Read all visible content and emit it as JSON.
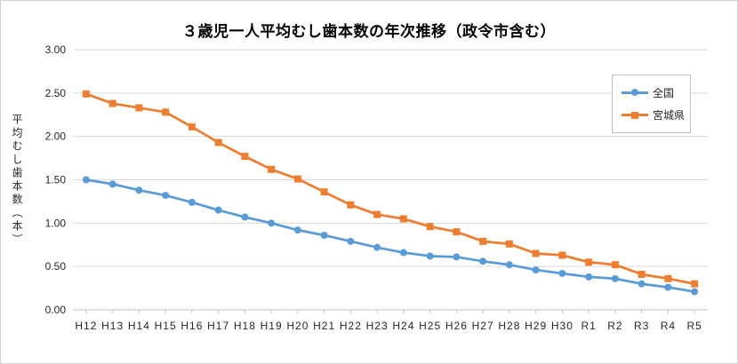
{
  "chart_data": {
    "type": "line",
    "title": "３歳児一人平均むし歯本数の年次推移（政令市含む）",
    "ylabel": "平均むし歯本数（本）",
    "xlabel": "",
    "categories": [
      "H12",
      "H13",
      "H14",
      "H15",
      "H16",
      "H17",
      "H18",
      "H19",
      "H20",
      "H21",
      "H22",
      "H23",
      "H24",
      "H25",
      "H26",
      "H27",
      "H28",
      "H29",
      "H30",
      "R1",
      "R2",
      "R3",
      "R4",
      "R5"
    ],
    "series": [
      {
        "name": "全国",
        "marker": "circle",
        "color": "#5B9BD5",
        "values": [
          1.5,
          1.45,
          1.38,
          1.32,
          1.24,
          1.15,
          1.07,
          1.0,
          0.92,
          0.86,
          0.79,
          0.72,
          0.66,
          0.62,
          0.61,
          0.56,
          0.52,
          0.46,
          0.42,
          0.38,
          0.36,
          0.3,
          0.26,
          0.21
        ]
      },
      {
        "name": "宮城県",
        "marker": "square",
        "color": "#ED7D31",
        "values": [
          2.49,
          2.38,
          2.33,
          2.28,
          2.11,
          1.93,
          1.77,
          1.62,
          1.51,
          1.36,
          1.21,
          1.1,
          1.05,
          0.96,
          0.9,
          0.79,
          0.76,
          0.65,
          0.63,
          0.55,
          0.52,
          0.41,
          0.36,
          0.3
        ]
      }
    ],
    "ylim": [
      0,
      3.0
    ],
    "ytick_step": 0.5,
    "ytick_labels": [
      "0.00",
      "0.50",
      "1.00",
      "1.50",
      "2.00",
      "2.50",
      "3.00"
    ],
    "grid": true,
    "legend_position": "upper-right",
    "colors": {
      "gridline": "#D9D9D9",
      "axis": "#BFBFBF",
      "tick_text": "#262626",
      "background": "#FFFFFF"
    }
  }
}
